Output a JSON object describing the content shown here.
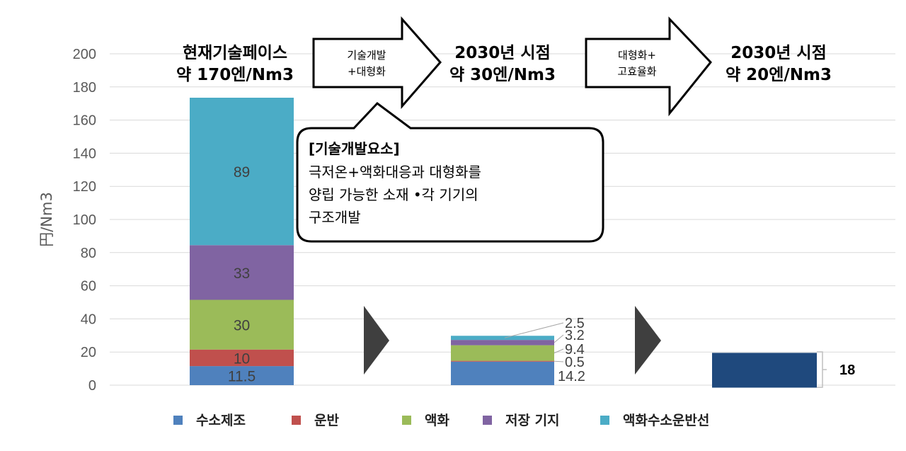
{
  "chart_data": {
    "type": "bar",
    "stacked": true,
    "ylabel": "円/Nm3",
    "ylim": [
      0,
      200
    ],
    "yticks": [
      0,
      20,
      40,
      60,
      80,
      100,
      120,
      140,
      160,
      180,
      200
    ],
    "grid": true,
    "legend_position": "bottom",
    "series": [
      {
        "name": "수소제조",
        "color": "#4f81bd",
        "values": [
          11.5,
          14.2,
          null
        ]
      },
      {
        "name": "운반",
        "color": "#c0504d",
        "values": [
          10,
          0.5,
          null
        ]
      },
      {
        "name": "액화",
        "color": "#9bbb59",
        "values": [
          30,
          9.4,
          null
        ]
      },
      {
        "name": "저장 기지",
        "color": "#8064a2",
        "values": [
          33,
          3.2,
          null
        ]
      },
      {
        "name": "액화수소운반선",
        "color": "#4bacc6",
        "values": [
          89,
          2.5,
          null
        ]
      }
    ],
    "total_bar": {
      "value": 18,
      "label": "18",
      "color": "#1f497d"
    },
    "segment_labels": [
      [
        "11.5",
        "10",
        "30",
        "33",
        "89"
      ],
      [
        "14.2",
        "0.5",
        "9.4",
        "3.2",
        "2.5"
      ]
    ],
    "stages": [
      {
        "line1": "현재기술페이스",
        "line2": "약 170엔/Nm3"
      },
      {
        "line1": "2030년 시점",
        "line2": "약 30엔/Nm3"
      },
      {
        "line1": "2030년 시점",
        "line2": "약 20엔/Nm3"
      }
    ],
    "arrows": [
      {
        "line1": "기술개발",
        "line2": "+대형화"
      },
      {
        "line1": "대형화+",
        "line2": "고효율화"
      }
    ],
    "callout": {
      "title": "[기술개발요소]",
      "lines": [
        "극저온+액화대응과 대형화를",
        "양립 가능한 소재 •각 기기의",
        "구조개발"
      ]
    }
  }
}
